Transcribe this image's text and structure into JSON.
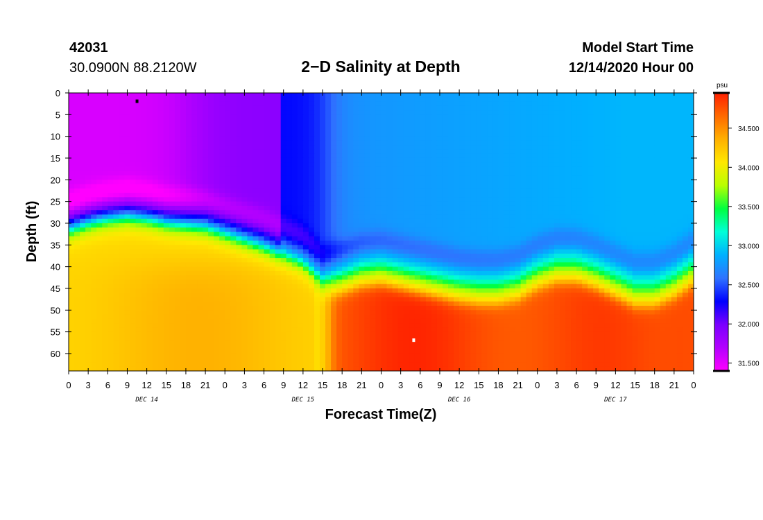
{
  "header": {
    "station_id": "42031",
    "location": "30.0900N 88.2120W",
    "title": "2−D Salinity at Depth",
    "model_label": "Model Start Time",
    "model_time": "12/14/2020 Hour 00"
  },
  "colors": {
    "scale": [
      "#ff00ff",
      "#b300ff",
      "#7a00ff",
      "#0000ff",
      "#2f73ff",
      "#00b0ff",
      "#00ffd8",
      "#00ff40",
      "#b8ff00",
      "#ffe800",
      "#ffb000",
      "#ff6a00",
      "#ff2000"
    ]
  },
  "chart_data": {
    "type": "heatmap",
    "title": "2−D Salinity at Depth",
    "xlabel": "Forecast Time(Z)",
    "ylabel": "Depth (ft)",
    "x_hour_range": [
      0,
      96
    ],
    "x_tick_labels": [
      "0",
      "3",
      "6",
      "9",
      "12",
      "15",
      "18",
      "21",
      "0",
      "3",
      "6",
      "9",
      "12",
      "15",
      "18",
      "21",
      "0",
      "3",
      "6",
      "9",
      "12",
      "15",
      "18",
      "21",
      "0",
      "3",
      "6",
      "9",
      "12",
      "15",
      "18",
      "21",
      "0"
    ],
    "x_date_labels": [
      {
        "label": "DEC 14",
        "hour": 12
      },
      {
        "label": "DEC 15",
        "hour": 36
      },
      {
        "label": "DEC 16",
        "hour": 60
      },
      {
        "label": "DEC 17",
        "hour": 84
      }
    ],
    "y_range": [
      0,
      64
    ],
    "y_ticks": [
      0,
      5,
      10,
      15,
      20,
      25,
      30,
      35,
      40,
      45,
      50,
      55,
      60
    ],
    "colorbar": {
      "unit": "psu",
      "range": [
        31.4,
        34.95
      ],
      "tick_values": [
        31.5,
        32.0,
        32.5,
        33.0,
        33.5,
        34.0,
        34.5
      ],
      "tick_labels": [
        "31.500",
        "32.000",
        "32.500",
        "33.000",
        "33.500",
        "34.000",
        "34.500"
      ]
    },
    "interface_depth_ft": {
      "hours": [
        0,
        3,
        6,
        9,
        12,
        15,
        18,
        21,
        24,
        27,
        30,
        33,
        36,
        39,
        42,
        45,
        48,
        51,
        54,
        57,
        60,
        63,
        66,
        69,
        72,
        75,
        78,
        81,
        84,
        87,
        90,
        93,
        96
      ],
      "values": [
        31,
        29.5,
        28.5,
        28,
        28.5,
        29.5,
        30,
        30.5,
        32,
        33.5,
        35,
        37,
        39,
        43,
        42,
        40.5,
        40,
        41,
        42,
        43,
        44,
        44.5,
        44.5,
        43.5,
        41,
        39.5,
        39.5,
        41,
        43,
        45,
        45,
        43,
        40
      ]
    },
    "extremes": [
      {
        "type": "min",
        "hour": 10.5,
        "depth_ft": 2
      },
      {
        "type": "max",
        "hour": 53,
        "depth_ft": 57
      }
    ]
  }
}
